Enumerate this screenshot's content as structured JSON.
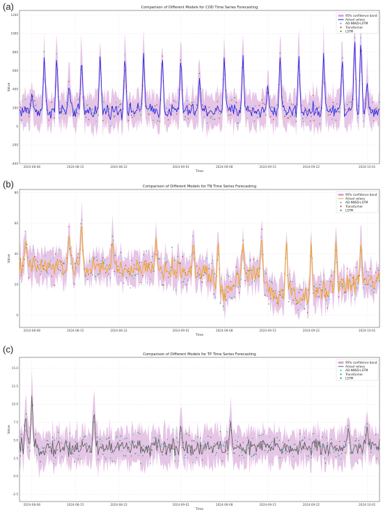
{
  "figure": {
    "panel_labels": [
      "(a)",
      "(b)",
      "(c)"
    ]
  },
  "chart_data": [
    {
      "type": "line",
      "panel": "(a)",
      "title": "Comparison of Different Models for COD Time Series Forecasting",
      "xlabel": "Time",
      "ylabel": "Value",
      "xlim": [
        "2024-08-06",
        "2024-10-03"
      ],
      "ylim": [
        -400,
        1250
      ],
      "x_ticks": [
        "2024-08-08",
        "2024-08-15",
        "2024-08-22",
        "2024-09-01",
        "2024-09-08",
        "2024-09-15",
        "2024-09-22",
        "2024-10-01"
      ],
      "y_ticks": [
        -400,
        -200,
        0,
        200,
        400,
        600,
        800,
        1000,
        1200
      ],
      "grid": true,
      "legend_position": "top-right",
      "legend": [
        "95% confidence band",
        "Actual values",
        "AD-NNSD-LSTM",
        "Transformer",
        "LSTM"
      ],
      "colors": {
        "band": "#d9a6d9",
        "actual": "#1515e6",
        "ad_nnsd_lstm": "#16c9d6",
        "transformer": "#e02a2a",
        "lstm": "#1f9e3a"
      },
      "series_summary": {
        "baseline": 170,
        "noise": 55,
        "band_half_width": 170,
        "spikes": [
          {
            "x": "2024-08-08",
            "y": 360
          },
          {
            "x": "2024-08-10",
            "y": 800
          },
          {
            "x": "2024-08-12",
            "y": 800
          },
          {
            "x": "2024-08-14",
            "y": 470
          },
          {
            "x": "2024-08-16",
            "y": 790
          },
          {
            "x": "2024-08-19",
            "y": 800
          },
          {
            "x": "2024-08-23",
            "y": 810
          },
          {
            "x": "2024-08-26",
            "y": 800
          },
          {
            "x": "2024-08-29",
            "y": 800
          },
          {
            "x": "2024-09-01",
            "y": 780
          },
          {
            "x": "2024-09-04",
            "y": 520
          },
          {
            "x": "2024-09-08",
            "y": 800
          },
          {
            "x": "2024-09-11",
            "y": 800
          },
          {
            "x": "2024-09-15",
            "y": 450
          },
          {
            "x": "2024-09-17",
            "y": 790
          },
          {
            "x": "2024-09-20",
            "y": 800
          },
          {
            "x": "2024-09-24",
            "y": 800
          },
          {
            "x": "2024-09-27",
            "y": 780
          },
          {
            "x": "2024-09-29",
            "y": 980
          },
          {
            "x": "2024-09-30",
            "y": 1000
          },
          {
            "x": "2024-10-01",
            "y": 480
          }
        ]
      }
    },
    {
      "type": "line",
      "panel": "(b)",
      "title": "Comparison of Different Models for TN Time Series Forecasting",
      "xlabel": "Time",
      "ylabel": "Value",
      "xlim": [
        "2024-08-06",
        "2024-10-03"
      ],
      "ylim": [
        -8,
        82
      ],
      "x_ticks": [
        "2024-08-08",
        "2024-08-15",
        "2024-08-22",
        "2024-09-01",
        "2024-09-08",
        "2024-09-15",
        "2024-09-22",
        "2024-10-01"
      ],
      "y_ticks": [
        0,
        20,
        40,
        60,
        80
      ],
      "grid": true,
      "legend_position": "top-right",
      "legend": [
        "95% confidence band",
        "Actual values",
        "AD-NNSD-LSTM",
        "Transformer",
        "LSTM"
      ],
      "colors": {
        "band": "#d9a6d9",
        "actual": "#f0a000",
        "ad_nnsd_lstm": "#16c9d6",
        "transformer": "#e02a2a",
        "lstm": "#1f9e3a"
      },
      "series_summary": {
        "noise": 5,
        "band_half_width": 9,
        "trend": [
          {
            "x": "2024-08-06",
            "y": 32
          },
          {
            "x": "2024-08-15",
            "y": 31
          },
          {
            "x": "2024-08-22",
            "y": 30
          },
          {
            "x": "2024-09-01",
            "y": 29
          },
          {
            "x": "2024-09-05",
            "y": 28
          },
          {
            "x": "2024-09-08",
            "y": 15
          },
          {
            "x": "2024-09-11",
            "y": 28
          },
          {
            "x": "2024-09-14",
            "y": 26
          },
          {
            "x": "2024-09-16",
            "y": 12
          },
          {
            "x": "2024-09-19",
            "y": 15
          },
          {
            "x": "2024-09-21",
            "y": 10
          },
          {
            "x": "2024-09-25",
            "y": 18
          },
          {
            "x": "2024-10-02",
            "y": 22
          }
        ],
        "spikes": [
          {
            "x": "2024-08-07",
            "y": 52
          },
          {
            "x": "2024-08-14",
            "y": 56
          },
          {
            "x": "2024-08-16",
            "y": 65
          },
          {
            "x": "2024-08-21",
            "y": 50
          },
          {
            "x": "2024-08-28",
            "y": 52
          },
          {
            "x": "2024-09-03",
            "y": 50
          },
          {
            "x": "2024-09-07",
            "y": 52
          },
          {
            "x": "2024-09-11",
            "y": 48
          },
          {
            "x": "2024-09-14",
            "y": 55
          },
          {
            "x": "2024-09-18",
            "y": 52
          },
          {
            "x": "2024-09-22",
            "y": 48
          },
          {
            "x": "2024-09-26",
            "y": 50
          },
          {
            "x": "2024-09-30",
            "y": 50
          }
        ]
      }
    },
    {
      "type": "line",
      "panel": "(c)",
      "title": "Comparison of Different Models for TP Time Series Forecasting",
      "xlabel": "Time",
      "ylabel": "Value",
      "xlim": [
        "2024-08-06",
        "2024-10-03"
      ],
      "ylim": [
        -3.5,
        16.5
      ],
      "x_ticks": [
        "2024-08-08",
        "2024-08-15",
        "2024-08-22",
        "2024-09-01",
        "2024-09-08",
        "2024-09-15",
        "2024-09-22",
        "2024-10-01"
      ],
      "y_ticks": [
        -2.5,
        0.0,
        2.5,
        5.0,
        7.5,
        10.0,
        12.5,
        15.0
      ],
      "y_tick_labels": [
        "-2.5",
        "0.0",
        "2.5",
        "5.0",
        "7.5",
        "10.0",
        "12.5",
        "15.0"
      ],
      "grid": true,
      "legend_position": "top-right",
      "legend": [
        "95% confidence band",
        "Actual values",
        "AD-NNSD-LSTM",
        "Transformer",
        "LSTM"
      ],
      "colors": {
        "band": "#d9a6d9",
        "actual": "#595959",
        "ad_nnsd_lstm": "#16c9d6",
        "transformer": "#2e8b57",
        "lstm": "#1f9e3a"
      },
      "series_summary": {
        "baseline": 4.0,
        "noise": 0.9,
        "band_half_width": 2.2,
        "spikes": [
          {
            "x": "2024-08-07",
            "y": 9
          },
          {
            "x": "2024-08-08",
            "y": 11.5
          },
          {
            "x": "2024-08-18",
            "y": 9.5
          },
          {
            "x": "2024-09-01",
            "y": 7.5
          },
          {
            "x": "2024-09-09",
            "y": 8
          },
          {
            "x": "2024-09-28",
            "y": 7
          },
          {
            "x": "2024-10-01",
            "y": 7
          }
        ]
      }
    }
  ]
}
